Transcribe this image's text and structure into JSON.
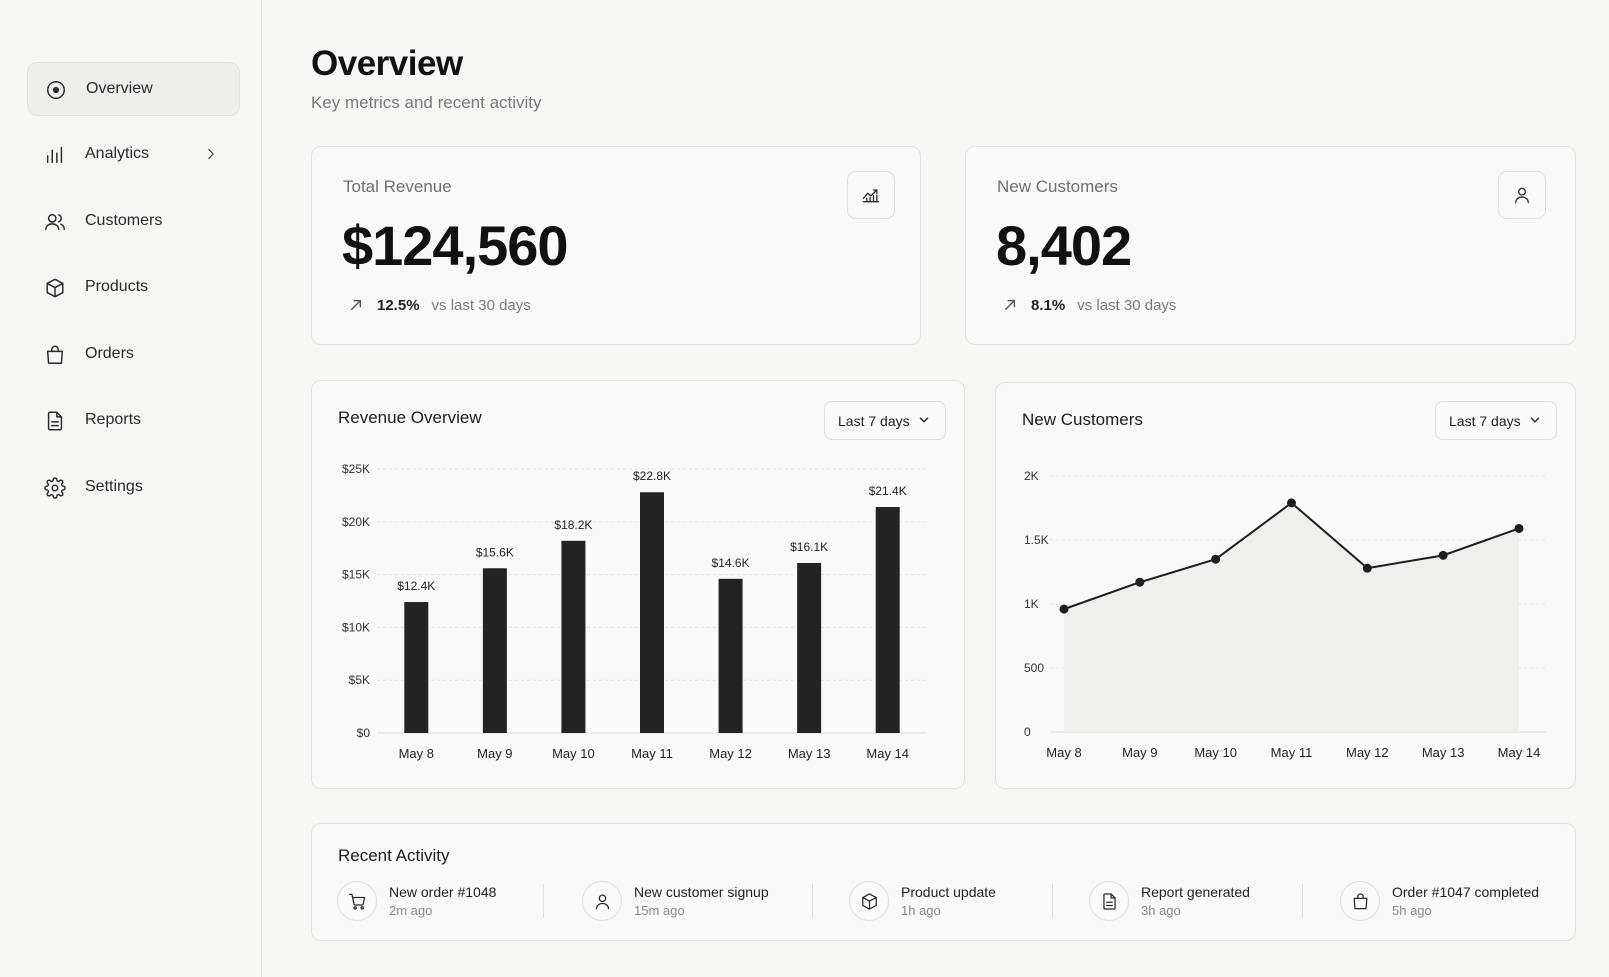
{
  "sidebar": {
    "items": [
      {
        "label": "Overview",
        "icon": "overview-icon",
        "active": true
      },
      {
        "label": "Analytics",
        "icon": "bar-chart-icon",
        "has_chevron": true
      },
      {
        "label": "Customers",
        "icon": "users-icon"
      },
      {
        "label": "Products",
        "icon": "box-icon"
      },
      {
        "label": "Orders",
        "icon": "shopping-bag-icon"
      },
      {
        "label": "Reports",
        "icon": "file-text-icon"
      },
      {
        "label": "Settings",
        "icon": "gear-icon"
      }
    ]
  },
  "header": {
    "title": "Overview",
    "subtitle": "Key metrics and recent activity"
  },
  "kpis": {
    "revenue": {
      "label": "Total Revenue",
      "value": "$124,560",
      "change": "12.5%",
      "comparison": "vs last 30 days",
      "icon": "trend-chart-icon"
    },
    "customers": {
      "label": "New Customers",
      "value": "8,402",
      "change": "8.1%",
      "comparison": "vs last 30 days",
      "icon": "user-icon"
    }
  },
  "charts": {
    "revenue": {
      "title": "Revenue Overview",
      "range": "Last 7 days"
    },
    "customers": {
      "title": "New Customers",
      "range": "Last 7 days"
    }
  },
  "chart_data": [
    {
      "type": "bar",
      "title": "Revenue Overview",
      "categories": [
        "May 8",
        "May 9",
        "May 10",
        "May 11",
        "May 12",
        "May 13",
        "May 14"
      ],
      "values": [
        12.4,
        15.6,
        18.2,
        22.8,
        14.6,
        16.1,
        21.4
      ],
      "data_labels": [
        "$12.4K",
        "$15.6K",
        "$18.2K",
        "$22.8K",
        "$14.6K",
        "$16.1K",
        "$21.4K"
      ],
      "yticks": [
        "$0",
        "$5K",
        "$10K",
        "$15K",
        "$20K",
        "$25K"
      ],
      "ylim": [
        0,
        25
      ],
      "unit": "thousand USD",
      "grid": true,
      "color": "#232323"
    },
    {
      "type": "area",
      "title": "New Customers",
      "categories": [
        "May 8",
        "May 9",
        "May 10",
        "May 11",
        "May 12",
        "May 13",
        "May 14"
      ],
      "values": [
        960,
        1170,
        1350,
        1790,
        1280,
        1380,
        1590
      ],
      "yticks": [
        "0",
        "500",
        "1K",
        "1.5K",
        "2K"
      ],
      "ylim": [
        0,
        2000
      ],
      "grid": true,
      "color": "#1e1e1e"
    }
  ],
  "activity": {
    "title": "Recent Activity",
    "items": [
      {
        "title": "New order #1048",
        "time": "2m ago",
        "icon": "cart-icon"
      },
      {
        "title": "New customer signup",
        "time": "15m ago",
        "icon": "user-icon"
      },
      {
        "title": "Product update",
        "time": "1h ago",
        "icon": "box-icon"
      },
      {
        "title": "Report generated",
        "time": "3h ago",
        "icon": "file-text-icon"
      },
      {
        "title": "Order #1047 completed",
        "time": "5h ago",
        "icon": "shopping-bag-icon"
      }
    ]
  }
}
